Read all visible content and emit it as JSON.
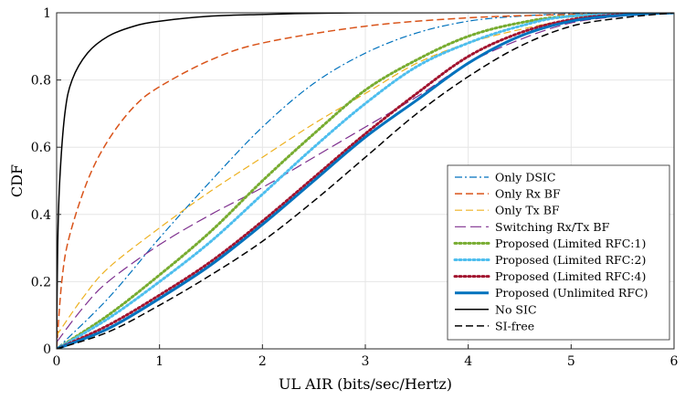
{
  "chart_data": {
    "type": "line",
    "title": "",
    "xlabel": "UL AIR (bits/sec/Hertz)",
    "ylabel": "CDF",
    "xlim": [
      0,
      6
    ],
    "ylim": [
      0,
      1
    ],
    "x_ticks": [
      "0",
      "1",
      "2",
      "3",
      "4",
      "5",
      "6"
    ],
    "y_ticks": [
      "0",
      "0.2",
      "0.4",
      "0.6",
      "0.8",
      "1"
    ],
    "grid": true,
    "legend_position": "bottom-right",
    "series": [
      {
        "name": "Only DSIC",
        "color": "#0072BD",
        "dash": "dash-dot",
        "width": 1.2,
        "points": [
          [
            0,
            0
          ],
          [
            0.5,
            0.15
          ],
          [
            1,
            0.33
          ],
          [
            1.5,
            0.5
          ],
          [
            2,
            0.66
          ],
          [
            2.5,
            0.79
          ],
          [
            3,
            0.88
          ],
          [
            3.5,
            0.94
          ],
          [
            4,
            0.975
          ],
          [
            4.5,
            0.99
          ],
          [
            5,
            0.997
          ],
          [
            6,
            1
          ]
        ]
      },
      {
        "name": "Only Rx BF",
        "color": "#D95319",
        "dash": "dashed",
        "width": 1.5,
        "points": [
          [
            0,
            0
          ],
          [
            0.05,
            0.2
          ],
          [
            0.12,
            0.33
          ],
          [
            0.3,
            0.5
          ],
          [
            0.5,
            0.62
          ],
          [
            0.75,
            0.72
          ],
          [
            1,
            0.78
          ],
          [
            1.5,
            0.86
          ],
          [
            2,
            0.91
          ],
          [
            3,
            0.96
          ],
          [
            4,
            0.985
          ],
          [
            5,
            0.995
          ],
          [
            6,
            1
          ]
        ]
      },
      {
        "name": "Only Tx BF",
        "color": "#EDB120",
        "dash": "dashed",
        "width": 1.2,
        "points": [
          [
            0,
            0.04
          ],
          [
            0.25,
            0.15
          ],
          [
            0.5,
            0.24
          ],
          [
            1,
            0.36
          ],
          [
            1.5,
            0.47
          ],
          [
            2,
            0.57
          ],
          [
            2.5,
            0.67
          ],
          [
            3,
            0.76
          ],
          [
            3.5,
            0.85
          ],
          [
            4,
            0.91
          ],
          [
            4.5,
            0.95
          ],
          [
            5,
            0.98
          ],
          [
            5.5,
            0.995
          ],
          [
            6,
            1
          ]
        ]
      },
      {
        "name": "Switching Rx/Tx BF",
        "color": "#7E2F8E",
        "dash": "long-dash",
        "width": 1.2,
        "points": [
          [
            0,
            0.02
          ],
          [
            0.25,
            0.12
          ],
          [
            0.5,
            0.2
          ],
          [
            1,
            0.31
          ],
          [
            1.5,
            0.4
          ],
          [
            2,
            0.48
          ],
          [
            2.5,
            0.57
          ],
          [
            3,
            0.66
          ],
          [
            3.5,
            0.75
          ],
          [
            4,
            0.85
          ],
          [
            4.5,
            0.92
          ],
          [
            5,
            0.97
          ],
          [
            5.5,
            0.99
          ],
          [
            6,
            1
          ]
        ]
      },
      {
        "name": "Proposed (Limited RFC:1)",
        "color": "#77AC30",
        "dash": "dotted",
        "width": 3,
        "points": [
          [
            0,
            0
          ],
          [
            0.5,
            0.1
          ],
          [
            1,
            0.22
          ],
          [
            1.5,
            0.35
          ],
          [
            2,
            0.5
          ],
          [
            2.5,
            0.64
          ],
          [
            3,
            0.77
          ],
          [
            3.5,
            0.86
          ],
          [
            4,
            0.93
          ],
          [
            4.5,
            0.97
          ],
          [
            5,
            0.99
          ],
          [
            6,
            1
          ]
        ]
      },
      {
        "name": "Proposed (Limited RFC:2)",
        "color": "#4DBEEE",
        "dash": "dotted",
        "width": 3,
        "points": [
          [
            0,
            0
          ],
          [
            0.5,
            0.09
          ],
          [
            1,
            0.2
          ],
          [
            1.5,
            0.32
          ],
          [
            2,
            0.46
          ],
          [
            2.5,
            0.6
          ],
          [
            3,
            0.73
          ],
          [
            3.5,
            0.84
          ],
          [
            4,
            0.91
          ],
          [
            4.5,
            0.96
          ],
          [
            5,
            0.99
          ],
          [
            6,
            1
          ]
        ]
      },
      {
        "name": "Proposed (Limited RFC:4)",
        "color": "#A2142F",
        "dash": "dotted",
        "width": 3,
        "points": [
          [
            0,
            0
          ],
          [
            0.5,
            0.07
          ],
          [
            1,
            0.16
          ],
          [
            1.5,
            0.26
          ],
          [
            2,
            0.38
          ],
          [
            2.5,
            0.51
          ],
          [
            3,
            0.64
          ],
          [
            3.5,
            0.76
          ],
          [
            4,
            0.87
          ],
          [
            4.5,
            0.94
          ],
          [
            5,
            0.98
          ],
          [
            5.5,
            0.995
          ],
          [
            6,
            1
          ]
        ]
      },
      {
        "name": "Proposed (Unlimited RFC)",
        "color": "#0072BD",
        "dash": "solid",
        "width": 3,
        "points": [
          [
            0,
            0
          ],
          [
            0.5,
            0.06
          ],
          [
            1,
            0.15
          ],
          [
            1.5,
            0.25
          ],
          [
            2,
            0.37
          ],
          [
            2.5,
            0.5
          ],
          [
            3,
            0.63
          ],
          [
            3.5,
            0.74
          ],
          [
            4,
            0.85
          ],
          [
            4.5,
            0.93
          ],
          [
            5,
            0.975
          ],
          [
            5.5,
            0.993
          ],
          [
            6,
            1
          ]
        ]
      },
      {
        "name": "No SIC",
        "color": "#000000",
        "dash": "solid",
        "width": 1.5,
        "points": [
          [
            0,
            0
          ],
          [
            0.01,
            0.3
          ],
          [
            0.03,
            0.5
          ],
          [
            0.08,
            0.7
          ],
          [
            0.15,
            0.8
          ],
          [
            0.3,
            0.88
          ],
          [
            0.5,
            0.93
          ],
          [
            0.75,
            0.96
          ],
          [
            1,
            0.975
          ],
          [
            1.5,
            0.99
          ],
          [
            2,
            0.995
          ],
          [
            3,
            1
          ],
          [
            6,
            1
          ]
        ]
      },
      {
        "name": "SI-free",
        "color": "#000000",
        "dash": "dashed",
        "width": 1.5,
        "points": [
          [
            0,
            0
          ],
          [
            0.5,
            0.05
          ],
          [
            1,
            0.13
          ],
          [
            1.5,
            0.22
          ],
          [
            2,
            0.32
          ],
          [
            2.5,
            0.44
          ],
          [
            3,
            0.57
          ],
          [
            3.5,
            0.7
          ],
          [
            4,
            0.81
          ],
          [
            4.5,
            0.9
          ],
          [
            5,
            0.96
          ],
          [
            5.5,
            0.985
          ],
          [
            6,
            1
          ]
        ]
      }
    ]
  }
}
